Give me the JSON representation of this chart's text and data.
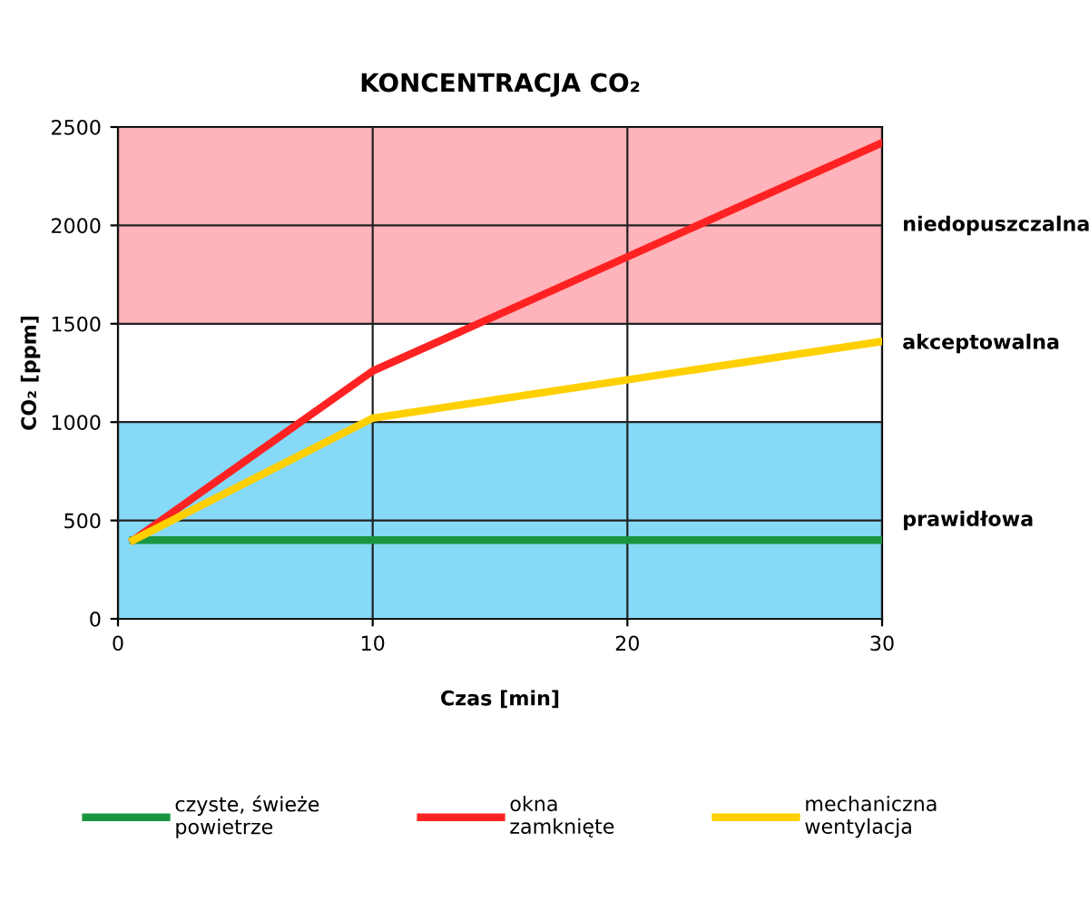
{
  "chart_data": {
    "type": "line",
    "title": "KONCENTRACJA CO₂",
    "xlabel": "Czas [min]",
    "ylabel": "CO₂ [ppm]",
    "xlim": [
      0,
      30
    ],
    "xticks": [
      0,
      10,
      20,
      30
    ],
    "ylim": [
      0,
      2500
    ],
    "yticks": [
      0,
      500,
      1000,
      1500,
      2000,
      2500
    ],
    "grid": true,
    "legend": "bottom",
    "series": [
      {
        "name": "czyste, świeże\npowietrze",
        "color": "#1a9641",
        "x": [
          0.6,
          10,
          30
        ],
        "values": [
          400,
          400,
          400
        ]
      },
      {
        "name": "okna\nzamknięte",
        "color": "#ff2222",
        "x": [
          0.6,
          10,
          30
        ],
        "values": [
          400,
          1260,
          2420
        ]
      },
      {
        "name": "mechaniczna\nwentylacja",
        "color": "#ffd000",
        "x": [
          0.6,
          10,
          30
        ],
        "values": [
          400,
          1020,
          1410
        ]
      }
    ],
    "annotations": [
      {
        "text": "akceptowalna",
        "x": 30,
        "y": 1400
      }
    ],
    "bands": [
      {
        "axis": "y",
        "from": 1500,
        "to": 2500,
        "label": "niedopuszczalna",
        "color": "#ffb3ba"
      },
      {
        "axis": "y",
        "from": 0,
        "to": 1000,
        "label": "prawidłowa",
        "color": "#86d9f7"
      }
    ]
  }
}
